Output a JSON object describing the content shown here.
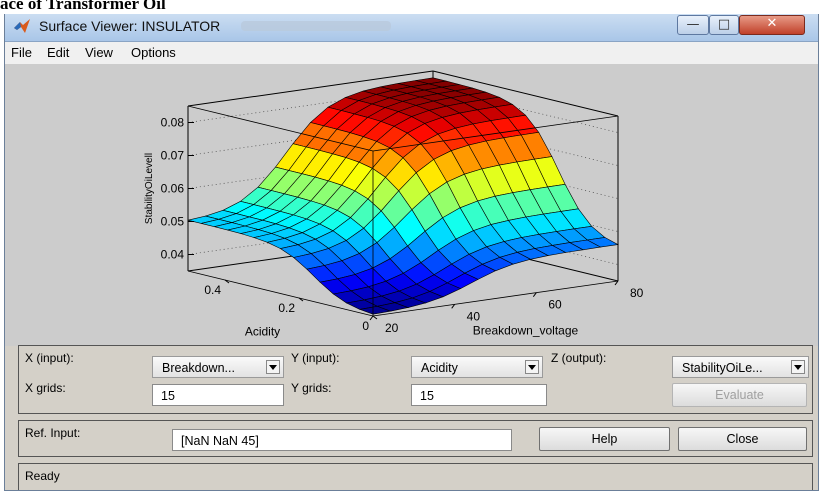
{
  "document": {
    "caption_fragment": "ace of Transformer Oil"
  },
  "window": {
    "title": "Surface Viewer: INSULATOR",
    "controls": {
      "minimize": "—",
      "maximize": "□",
      "close": "✕"
    },
    "icon": "matlab-logo-icon"
  },
  "menu": {
    "file": "File",
    "edit": "Edit",
    "view": "View",
    "options": "Options"
  },
  "chart_data": {
    "type": "surface",
    "x_axis": {
      "label": "Breakdown_voltage",
      "ticks": [
        "20",
        "40",
        "60",
        "80"
      ],
      "range": [
        20,
        80
      ]
    },
    "y_axis": {
      "label": "Acidity",
      "ticks": [
        "0",
        "0.2",
        "0.4"
      ],
      "range": [
        0,
        0.5
      ]
    },
    "z_axis": {
      "label": "StabilityOiLevell",
      "ticks": [
        "0.04",
        "0.05",
        "0.06",
        "0.07",
        "0.08"
      ],
      "range": [
        0.035,
        0.085
      ]
    },
    "grid": true,
    "colormap": "jet",
    "grid_points": 15,
    "surface_description_values": {
      "low_z": 0.035,
      "plateau_z": 0.083,
      "left_edge_z": 0.05,
      "right_edge_z": 0.045
    }
  },
  "controls": {
    "x_input_label": "X (input):",
    "x_input_value": "Breakdown...",
    "y_input_label": "Y (input):",
    "y_input_value": "Acidity",
    "z_output_label": "Z (output):",
    "z_output_value": "StabilityOiLe...",
    "x_grids_label": "X grids:",
    "x_grids_value": "15",
    "y_grids_label": "Y grids:",
    "y_grids_value": "15",
    "evaluate_label": "Evaluate",
    "ref_input_label": "Ref. Input:",
    "ref_input_value": "[NaN NaN 45]",
    "help_label": "Help",
    "close_label": "Close",
    "status_text": "Ready"
  }
}
